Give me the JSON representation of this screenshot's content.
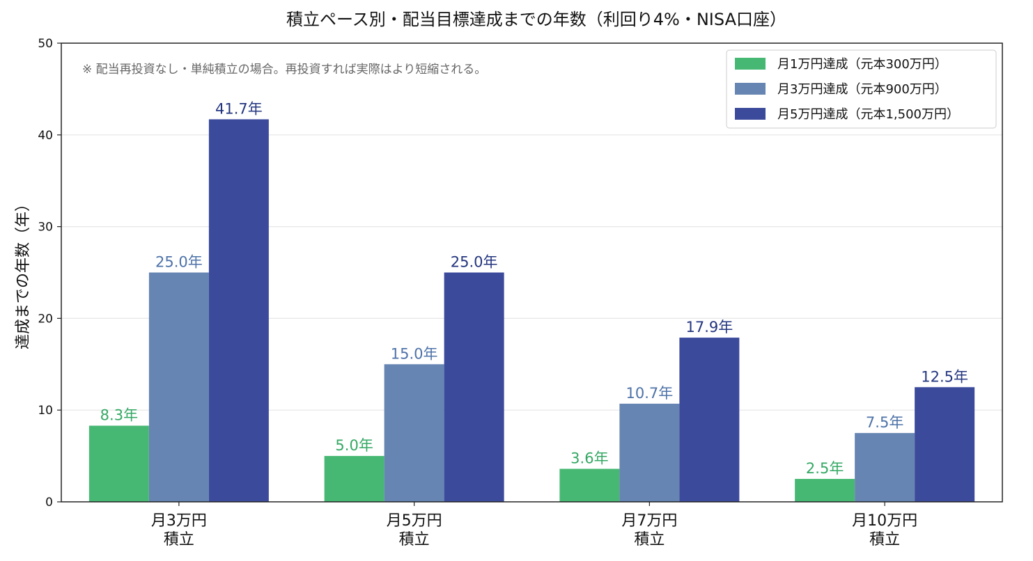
{
  "chart_data": {
    "type": "bar",
    "title": "積立ペース別・配当目標達成までの年数（利回り4%・NISA口座）",
    "xlabel": "",
    "ylabel": "達成までの年数（年）",
    "ylim": [
      0,
      50
    ],
    "yticks": [
      0,
      10,
      20,
      30,
      40,
      50
    ],
    "grid": true,
    "legend_position": "top-right",
    "annotation": "※ 配当再投資なし・単純積立の場合。再投資すれば実際はより短縮される。",
    "categories": [
      [
        "月3万円",
        "積立"
      ],
      [
        "月5万円",
        "積立"
      ],
      [
        "月7万円",
        "積立"
      ],
      [
        "月10万円",
        "積立"
      ]
    ],
    "series": [
      {
        "name": "月1万円達成（元本300万円）",
        "color": "#47B874",
        "label_color": "#34A864",
        "values": [
          8.3,
          5.0,
          3.6,
          2.5
        ],
        "labels": [
          "8.3年",
          "5.0年",
          "3.6年",
          "2.5年"
        ]
      },
      {
        "name": "月3万円達成（元本900万円）",
        "color": "#6685B2",
        "label_color": "#4D72A8",
        "values": [
          25.0,
          15.0,
          10.7,
          7.5
        ],
        "labels": [
          "25.0年",
          "15.0年",
          "10.7年",
          "7.5年"
        ]
      },
      {
        "name": "月5万円達成（元本1,500万円）",
        "color": "#3C4A9C",
        "label_color": "#23357F",
        "values": [
          41.7,
          25.0,
          17.9,
          12.5
        ],
        "labels": [
          "41.7年",
          "25.0年",
          "17.9年",
          "12.5年"
        ]
      }
    ]
  }
}
